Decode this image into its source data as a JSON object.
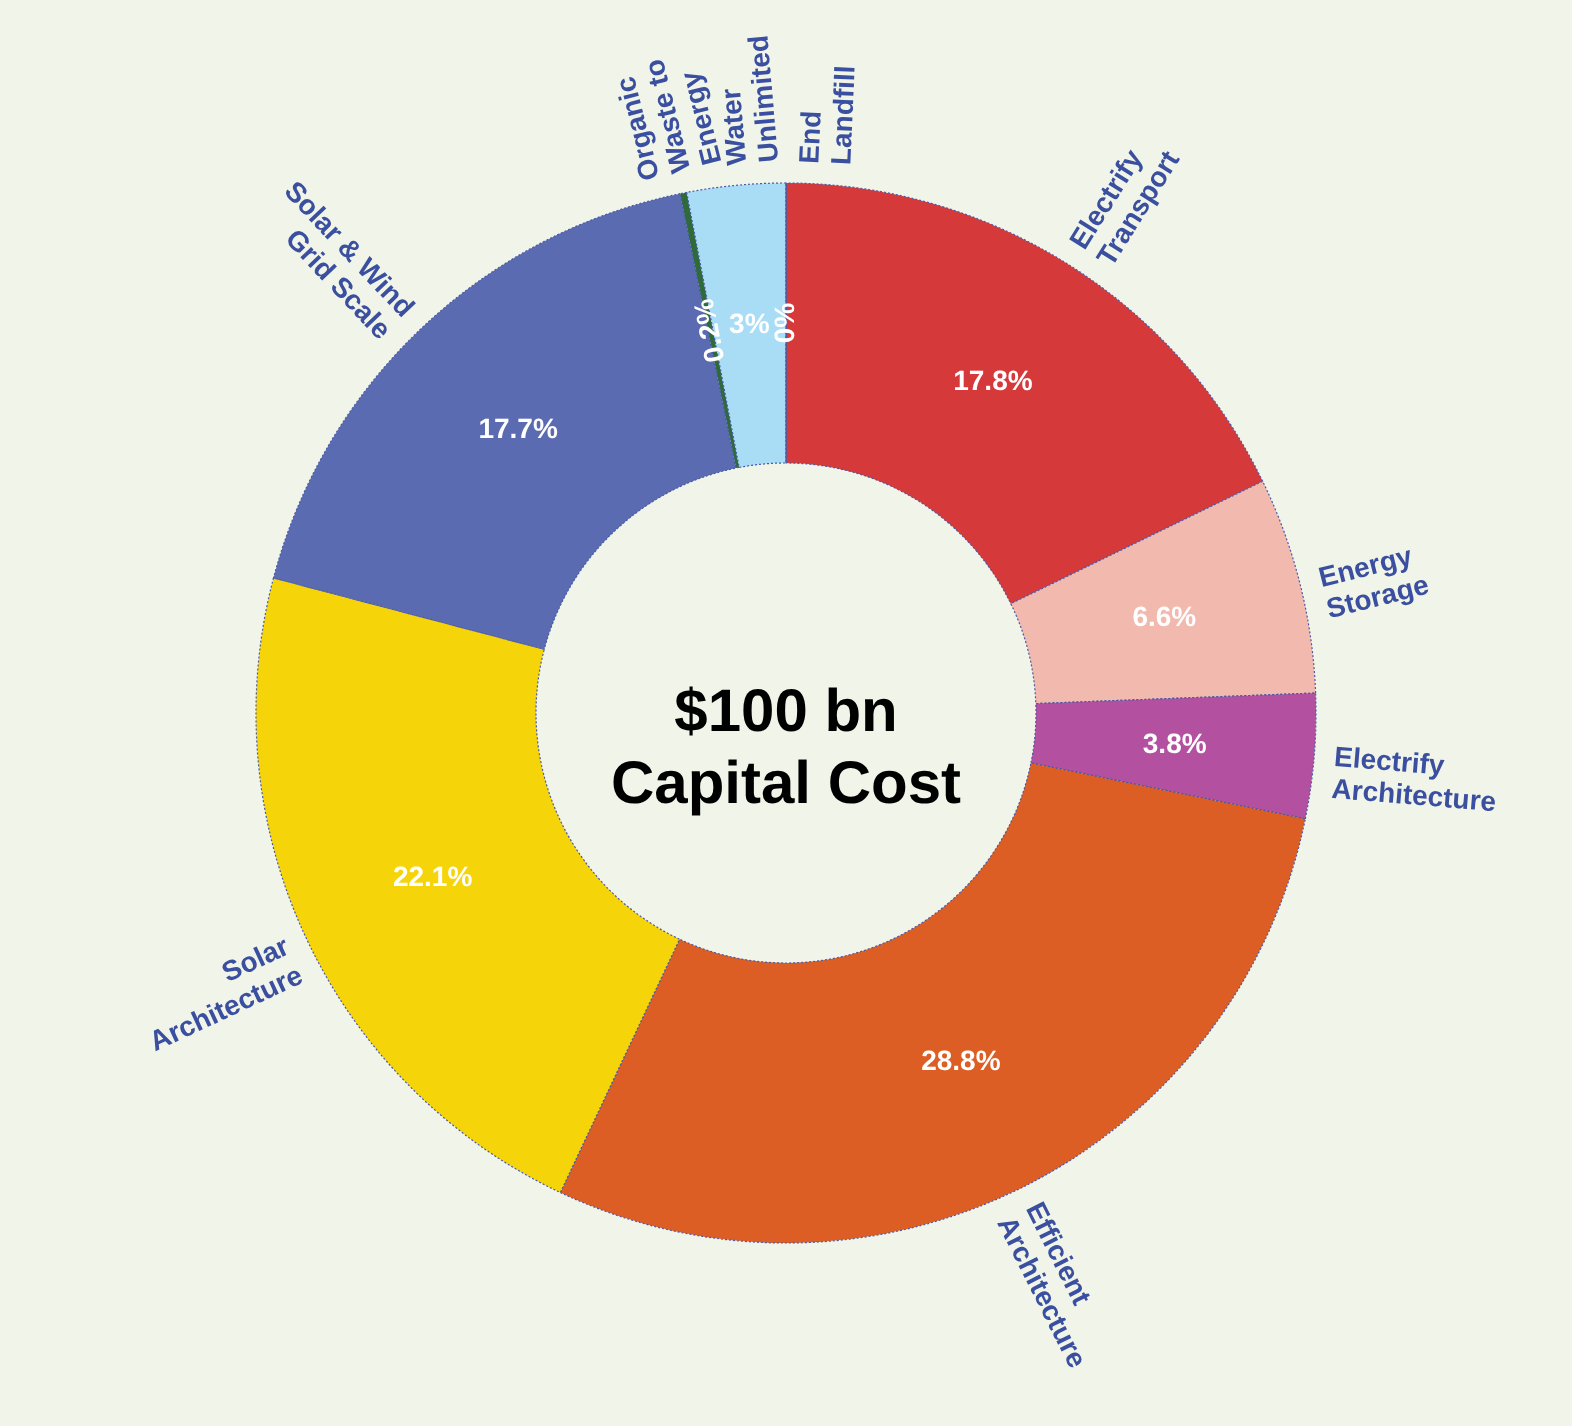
{
  "chart_data": {
    "type": "donut",
    "categories": [
      "Electrify\nTransport",
      "Energy\nStorage",
      "Electrify\nArchitecture",
      "Efficient\nArchitecture",
      "Solar\nArchitecture",
      "Solar & Wind\nGrid Scale",
      "Organic\nWaste to\nEnergy",
      "Water\nUnlimited",
      "End\nLandfill"
    ],
    "values": [
      17.8,
      6.6,
      3.8,
      28.8,
      22.1,
      17.7,
      0.2,
      3,
      0
    ],
    "colors": [
      "#d6393a",
      "#f2b9ae",
      "#b3509f",
      "#dd5e24",
      "#f6d40a",
      "#5b6bb1",
      "#2f6a39",
      "#a9dcf5",
      "#3a4fa0"
    ],
    "value_labels": [
      "17.8%",
      "6.6%",
      "3.8%",
      "28.8%",
      "22.1%",
      "17.7%",
      "0.2%",
      "3%",
      "0%"
    ],
    "annotations": [
      "$100 bn\nCapital Cost"
    ],
    "legend": false
  }
}
